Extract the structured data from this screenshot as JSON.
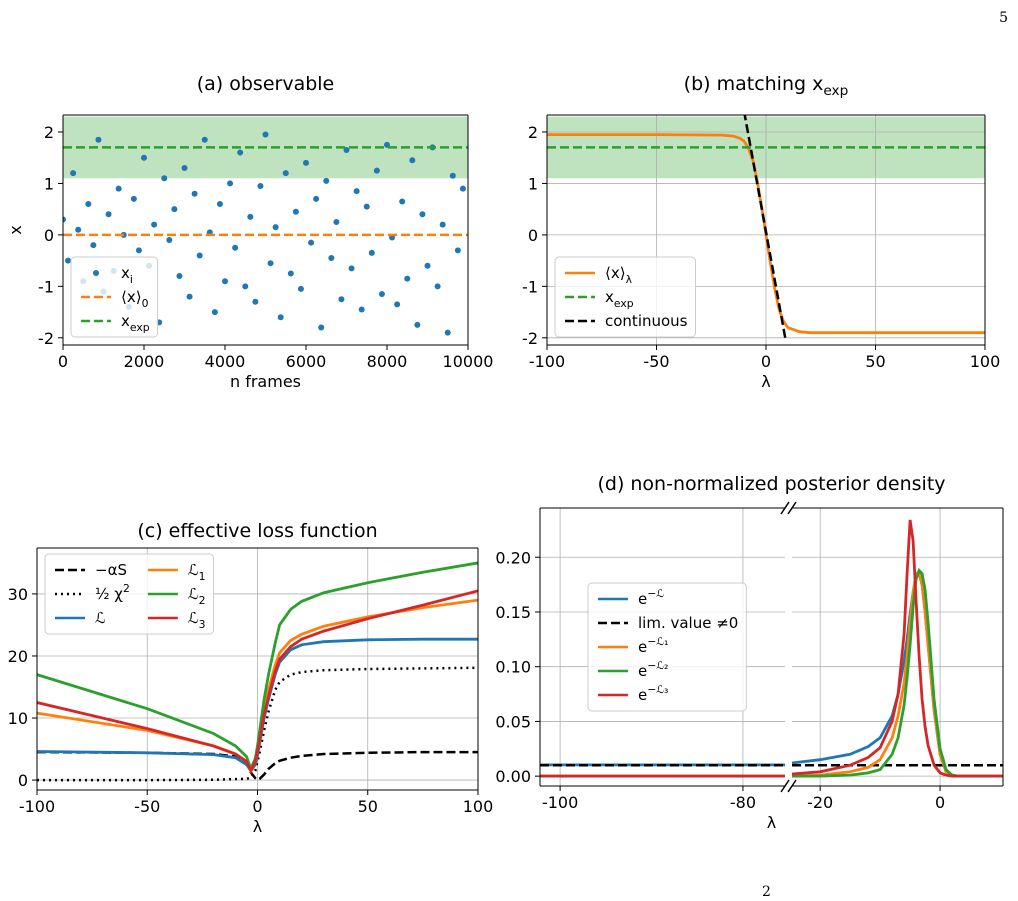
{
  "page_number": "5",
  "footer": "2",
  "chart_data": [
    {
      "type": "scatter",
      "title": "(a) observable",
      "xlabel": "n frames",
      "ylabel": "x",
      "xlim": [
        0,
        10000
      ],
      "ylim": [
        -2.14,
        2.33
      ],
      "xticks": [
        0,
        2000,
        4000,
        6000,
        8000,
        10000
      ],
      "yticks": [
        -2,
        -1,
        0,
        1,
        2
      ],
      "grid": false,
      "legend": "lower left",
      "band": {
        "range": [
          1.1,
          2.3
        ],
        "color": "#2ca02c"
      },
      "series": [
        {
          "name": "x_{i}",
          "color": "#1f77b4",
          "line": "none",
          "x": [
            0,
            125,
            250,
            375,
            500,
            625,
            750,
            875,
            1000,
            1125,
            1250,
            1375,
            1500,
            1625,
            1750,
            1875,
            2000,
            2125,
            2250,
            2375,
            2500,
            2625,
            2750,
            2875,
            3000,
            3125,
            3250,
            3375,
            3500,
            3625,
            3750,
            3875,
            4000,
            4125,
            4250,
            4375,
            4500,
            4625,
            4750,
            4875,
            5000,
            5125,
            5250,
            5375,
            5500,
            5625,
            5750,
            5875,
            6000,
            6125,
            6250,
            6375,
            6500,
            6625,
            6750,
            6875,
            7000,
            7125,
            7250,
            7375,
            7500,
            7625,
            7750,
            7875,
            8000,
            8125,
            8250,
            8375,
            8500,
            8625,
            8750,
            8875,
            9000,
            9125,
            9250,
            9375,
            9500,
            9625,
            9750,
            9875
          ],
          "values": [
            0.3,
            -0.5,
            1.2,
            0.1,
            -0.9,
            0.6,
            -0.2,
            1.85,
            -1.1,
            0.4,
            -0.7,
            0.9,
            0.0,
            -1.4,
            0.7,
            -0.3,
            1.5,
            -0.6,
            0.2,
            -1.7,
            1.1,
            -0.1,
            0.5,
            -0.8,
            1.3,
            -1.2,
            0.8,
            -0.4,
            1.85,
            0.05,
            -1.5,
            0.6,
            -0.9,
            1.0,
            -0.25,
            1.6,
            -1.0,
            0.35,
            -1.3,
            0.95,
            1.95,
            -0.55,
            0.15,
            -1.6,
            1.2,
            -0.75,
            0.45,
            -1.05,
            1.4,
            -0.15,
            0.7,
            -1.8,
            1.05,
            -0.45,
            0.25,
            -1.25,
            1.65,
            -0.65,
            0.85,
            -1.45,
            0.55,
            -0.35,
            1.25,
            -1.15,
            1.75,
            -0.05,
            -1.35,
            0.65,
            -0.85,
            1.45,
            -1.75,
            0.4,
            -0.6,
            1.7,
            -1.0,
            0.2,
            -1.9,
            1.15,
            -0.3,
            0.9
          ]
        },
        {
          "name": "⟨x⟩_{0}",
          "color": "#ff7f0e",
          "line": "dashed",
          "value": 0
        },
        {
          "name": "x_{exp}",
          "color": "#2ca02c",
          "line": "dashed",
          "value": 1.7
        }
      ]
    },
    {
      "type": "line",
      "title": "(b) matching x_{exp}",
      "xlabel": "λ",
      "xlim": [
        -100,
        100
      ],
      "ylim": [
        -2.14,
        2.33
      ],
      "xticks": [
        -100,
        -50,
        0,
        50,
        100
      ],
      "yticks": [
        -2,
        -1,
        0,
        1,
        2
      ],
      "grid": true,
      "legend": "lower left",
      "band": {
        "range": [
          1.1,
          2.3
        ],
        "color": "#2ca02c"
      },
      "series": [
        {
          "name": "⟨x⟩_{λ}",
          "color": "#ff7f0e",
          "line": "solid",
          "x": [
            -100,
            -50,
            -20,
            -15,
            -12,
            -10,
            -8,
            -6,
            -4,
            -2,
            0,
            2,
            4,
            6,
            8,
            10,
            15,
            20,
            50,
            100
          ],
          "values": [
            1.95,
            1.95,
            1.94,
            1.92,
            1.88,
            1.82,
            1.68,
            1.45,
            1.05,
            0.55,
            0,
            -0.55,
            -1.05,
            -1.45,
            -1.68,
            -1.8,
            -1.88,
            -1.9,
            -1.9,
            -1.9
          ]
        },
        {
          "name": "x_{exp}",
          "color": "#2ca02c",
          "line": "dashed",
          "value": 1.7
        },
        {
          "name": "continuous",
          "color": "#000000",
          "line": "dashed",
          "x": [
            -10,
            9
          ],
          "values": [
            2.4,
            -2.05
          ]
        }
      ]
    },
    {
      "type": "line",
      "title": "(c) effective loss function",
      "xlabel": "λ",
      "xlim": [
        -100,
        100
      ],
      "ylim": [
        -1.6,
        37.4
      ],
      "xticks": [
        -100,
        -50,
        0,
        50,
        100
      ],
      "yticks": [
        0,
        10,
        20,
        30
      ],
      "grid": true,
      "legend": "upper left",
      "legend_columns": 2,
      "series": [
        {
          "name": "−αS",
          "color": "#000000",
          "line": "dashed",
          "x": [
            -100,
            -50,
            -20,
            -10,
            -5,
            -3,
            -1,
            0,
            1,
            3,
            5,
            8,
            10,
            15,
            20,
            30,
            50,
            75,
            100
          ],
          "values": [
            4.5,
            4.4,
            4.2,
            3.8,
            2.8,
            1.2,
            0.3,
            0.05,
            0.2,
            0.9,
            1.8,
            2.7,
            3.1,
            3.6,
            3.9,
            4.2,
            4.4,
            4.5,
            4.5
          ]
        },
        {
          "name": "½ χ^{2}",
          "color": "#000000",
          "line": "dotted",
          "x": [
            -100,
            -50,
            -20,
            -10,
            -5,
            -3,
            -1,
            0,
            1,
            3,
            5,
            8,
            10,
            15,
            20,
            30,
            50,
            75,
            100
          ],
          "values": [
            0,
            0,
            0.05,
            0.15,
            0.2,
            0.4,
            1.5,
            3,
            4.5,
            8,
            11,
            14.5,
            15.8,
            17,
            17.4,
            17.7,
            17.9,
            18,
            18.1
          ]
        },
        {
          "name": "ℒ",
          "color": "#1f77b4",
          "line": "solid",
          "x": [
            -100,
            -50,
            -20,
            -10,
            -5,
            -3,
            -1,
            0,
            1,
            3,
            5,
            8,
            10,
            15,
            20,
            30,
            50,
            75,
            100
          ],
          "values": [
            4.6,
            4.4,
            4.1,
            3.6,
            2.5,
            1.5,
            2.5,
            4,
            6,
            10,
            13,
            17,
            19,
            21,
            21.8,
            22.3,
            22.6,
            22.7,
            22.7
          ]
        },
        {
          "name": "ℒ_{1}",
          "color": "#ff7f0e",
          "line": "solid",
          "x": [
            -100,
            -50,
            -20,
            -10,
            -5,
            -3,
            -1,
            0,
            1,
            3,
            5,
            8,
            10,
            15,
            20,
            30,
            50,
            75,
            100
          ],
          "values": [
            10.8,
            8,
            5.5,
            4.2,
            3,
            1.5,
            3,
            4.5,
            6.5,
            11,
            14.5,
            18.5,
            20.5,
            22.5,
            23.5,
            24.8,
            26.3,
            27.8,
            29
          ]
        },
        {
          "name": "ℒ_{2}",
          "color": "#2ca02c",
          "line": "solid",
          "x": [
            -100,
            -50,
            -20,
            -10,
            -5,
            -3,
            -1,
            0,
            1,
            3,
            5,
            8,
            10,
            15,
            20,
            30,
            50,
            75,
            100
          ],
          "values": [
            17,
            11.5,
            7.5,
            5.5,
            3.8,
            1.8,
            3.5,
            5.5,
            8,
            13,
            17,
            22,
            25,
            27.5,
            28.8,
            30.2,
            31.8,
            33.5,
            35
          ]
        },
        {
          "name": "ℒ_{3}",
          "color": "#d62728",
          "line": "solid",
          "x": [
            -100,
            -50,
            -20,
            -10,
            -5,
            -3,
            -1,
            0,
            1,
            3,
            5,
            8,
            10,
            15,
            20,
            30,
            50,
            75,
            100
          ],
          "values": [
            12.5,
            8.3,
            5.5,
            4.2,
            3,
            1.5,
            3,
            4.5,
            6.5,
            10.5,
            13.5,
            17.5,
            19.5,
            21.5,
            22.7,
            24,
            26,
            28.2,
            30.5
          ]
        }
      ]
    },
    {
      "type": "line",
      "title": "(d) non-normalized posterior density",
      "xlabel": "λ",
      "xlim_segments": [
        [
          -102.2,
          -75.4
        ],
        [
          -24.7,
          10.5
        ]
      ],
      "ylim": [
        -0.009,
        0.245
      ],
      "xticks": [
        -100,
        -80,
        -20,
        0
      ],
      "yticks": [
        {
          "value": 0,
          "label": "0.00"
        },
        {
          "value": 0.05,
          "label": "0.05"
        },
        {
          "value": 0.1,
          "label": "0.10"
        },
        {
          "value": 0.15,
          "label": "0.15"
        },
        {
          "value": 0.2,
          "label": "0.20"
        }
      ],
      "grid": true,
      "legend": "center left",
      "series": [
        {
          "name": "e^{−ℒ}",
          "color": "#1f77b4",
          "line": "solid",
          "x": [
            -102.2,
            -75.4,
            -24.7,
            -20,
            -15,
            -12,
            -10,
            -8,
            -7,
            -6,
            -5.5,
            -5,
            -4.5,
            -4,
            -3.5,
            -3,
            -2.5,
            -2,
            -1,
            0,
            1,
            2,
            3,
            5,
            10.5
          ],
          "values": [
            0.0103,
            0.0103,
            0.012,
            0.015,
            0.02,
            0.027,
            0.035,
            0.055,
            0.075,
            0.105,
            0.125,
            0.148,
            0.168,
            0.182,
            0.185,
            0.175,
            0.15,
            0.12,
            0.06,
            0.02,
            0.004,
            0.001,
            0,
            0,
            0
          ]
        },
        {
          "name": "lim. value ≠0",
          "color": "#000000",
          "line": "dashed",
          "value": 0.01
        },
        {
          "name": "e^{−ℒ₁}",
          "color": "#ff7f0e",
          "line": "solid",
          "x": [
            -102.2,
            -75.4,
            -24.7,
            -20,
            -15,
            -12,
            -10,
            -8,
            -7,
            -6,
            -5.5,
            -5,
            -4.5,
            -4,
            -3.5,
            -3,
            -2.5,
            -2,
            -1,
            0,
            1,
            2,
            3,
            5,
            10.5
          ],
          "values": [
            0,
            0,
            0,
            0.001,
            0.004,
            0.008,
            0.015,
            0.035,
            0.055,
            0.085,
            0.11,
            0.14,
            0.168,
            0.185,
            0.186,
            0.175,
            0.15,
            0.12,
            0.06,
            0.02,
            0.004,
            0.001,
            0,
            0,
            0
          ]
        },
        {
          "name": "e^{−ℒ₂}",
          "color": "#2ca02c",
          "line": "solid",
          "x": [
            -102.2,
            -75.4,
            -24.7,
            -20,
            -15,
            -12,
            -10,
            -8,
            -7,
            -6,
            -5.5,
            -5,
            -4.5,
            -4,
            -3.5,
            -3,
            -2.5,
            -2,
            -1,
            0,
            1,
            2,
            3,
            5,
            10.5
          ],
          "values": [
            0,
            0,
            0,
            0,
            0.001,
            0.003,
            0.006,
            0.02,
            0.035,
            0.065,
            0.09,
            0.12,
            0.155,
            0.18,
            0.188,
            0.185,
            0.17,
            0.14,
            0.07,
            0.025,
            0.006,
            0.001,
            0,
            0,
            0
          ]
        },
        {
          "name": "e^{−ℒ₃}",
          "color": "#d62728",
          "line": "solid",
          "x": [
            -102.2,
            -75.4,
            -24.7,
            -20,
            -15,
            -12,
            -10,
            -8,
            -7,
            -6,
            -5.5,
            -5,
            -4.5,
            -4,
            -3.5,
            -3,
            -2.5,
            -2,
            -1,
            0,
            1,
            2,
            3,
            5,
            10.5
          ],
          "values": [
            0,
            0,
            0.002,
            0.004,
            0.01,
            0.017,
            0.026,
            0.05,
            0.075,
            0.13,
            0.185,
            0.234,
            0.215,
            0.16,
            0.11,
            0.07,
            0.045,
            0.028,
            0.01,
            0.003,
            0.001,
            0,
            0,
            0,
            0
          ]
        }
      ]
    }
  ]
}
